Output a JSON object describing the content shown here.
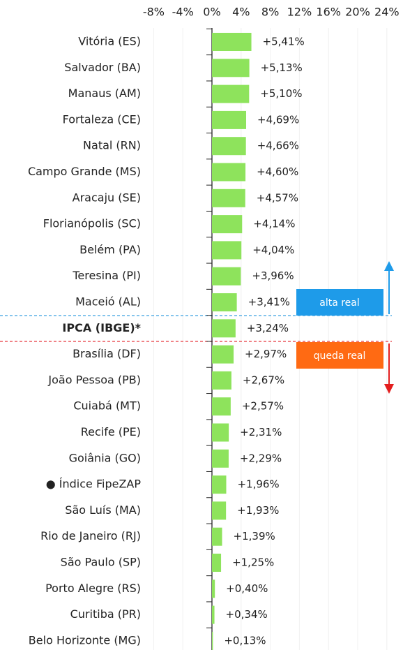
{
  "chart_data": {
    "type": "bar",
    "orientation": "horizontal",
    "categories": [
      "Vitória (ES)",
      "Salvador (BA)",
      "Manaus (AM)",
      "Fortaleza (CE)",
      "Natal (RN)",
      "Campo Grande (MS)",
      "Aracaju (SE)",
      "Florianópolis (SC)",
      "Belém (PA)",
      "Teresina (PI)",
      "Maceió (AL)",
      "IPCA (IBGE)*",
      "Brasília (DF)",
      "João Pessoa (PB)",
      "Cuiabá (MT)",
      "Recife (PE)",
      "Goiânia (GO)",
      "● Índice FipeZAP",
      "São Luís (MA)",
      "Rio de Janeiro (RJ)",
      "São Paulo (SP)",
      "Porto Alegre (RS)",
      "Curitiba (PR)",
      "Belo Horizonte (MG)"
    ],
    "values": [
      5.41,
      5.13,
      5.1,
      4.69,
      4.66,
      4.6,
      4.57,
      4.14,
      4.04,
      3.96,
      3.41,
      3.24,
      2.97,
      2.67,
      2.57,
      2.31,
      2.29,
      1.96,
      1.93,
      1.39,
      1.25,
      0.4,
      0.34,
      0.13
    ],
    "value_labels": [
      "+5,41%",
      "+5,13%",
      "+5,10%",
      "+4,69%",
      "+4,66%",
      "+4,60%",
      "+4,57%",
      "+4,14%",
      "+4,04%",
      "+3,96%",
      "+3,41%",
      "+3,24%",
      "+2,97%",
      "+2,67%",
      "+2,57%",
      "+2,31%",
      "+2,29%",
      "+1,96%",
      "+1,93%",
      "+1,39%",
      "+1,25%",
      "+0,40%",
      "+0,34%",
      "+0,13%"
    ],
    "color": "#8ee35c",
    "xlim": [
      -8,
      24
    ],
    "xticks": [
      {
        "value": -8,
        "label": "-8%"
      },
      {
        "value": -4,
        "label": "-4%"
      },
      {
        "value": 0,
        "label": "0%"
      },
      {
        "value": 4,
        "label": "4%"
      },
      {
        "value": 8,
        "label": "8%"
      },
      {
        "value": 12,
        "label": "12%"
      },
      {
        "value": 16,
        "label": "16%"
      },
      {
        "value": 20,
        "label": "20%"
      },
      {
        "value": 24,
        "label": "24%"
      }
    ],
    "grid": true,
    "annotations": [
      "alta real",
      "queda real"
    ]
  }
}
